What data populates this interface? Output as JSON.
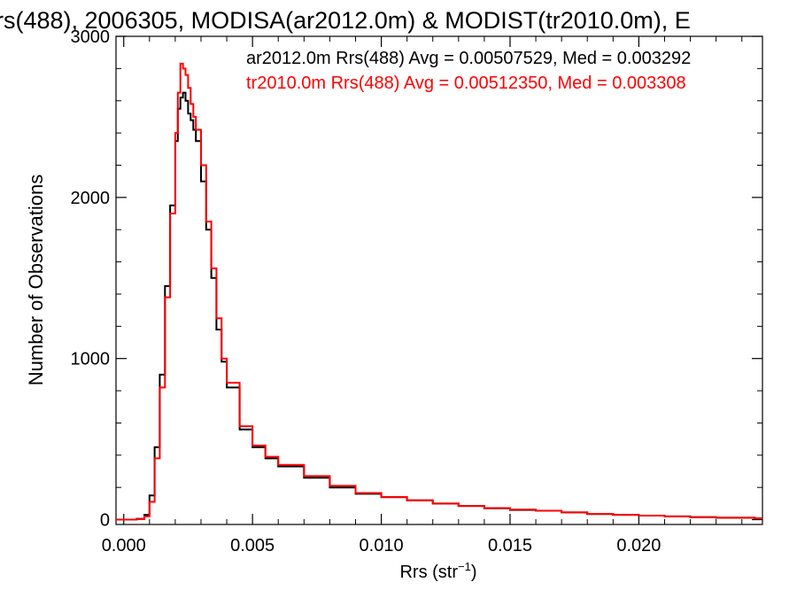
{
  "chart_data": {
    "type": "line",
    "title": "rs(488), 2006305, MODISA(ar2012.0m) & MODIST(tr2010.0m), E",
    "xlabel": "Rrs (str",
    "xlabel_sup": "−1",
    "xlabel_close": ")",
    "ylabel": "Number of Observations",
    "xlim": [
      -0.0003,
      0.0248
    ],
    "ylim": [
      -30,
      3000
    ],
    "x_ticks": [
      {
        "value": 0.0,
        "label": "0.000"
      },
      {
        "value": 0.005,
        "label": "0.005"
      },
      {
        "value": 0.01,
        "label": "0.010"
      },
      {
        "value": 0.015,
        "label": "0.015"
      },
      {
        "value": 0.02,
        "label": "0.020"
      }
    ],
    "y_ticks": [
      {
        "value": 0,
        "label": "0"
      },
      {
        "value": 1000,
        "label": "1000"
      },
      {
        "value": 2000,
        "label": "2000"
      },
      {
        "value": 3000,
        "label": "3000"
      }
    ],
    "grid": false,
    "legend_position": "top-right",
    "series": [
      {
        "name": "ar2012.0m",
        "color": "#000000",
        "stat_text": "ar2012.0m Rrs(488) Avg = 0.00507529, Med = 0.003292",
        "x": [
          -0.0003,
          0.0,
          0.0005,
          0.0008,
          0.001,
          0.0012,
          0.0014,
          0.0016,
          0.0018,
          0.002,
          0.0021,
          0.0022,
          0.0023,
          0.0024,
          0.0025,
          0.0026,
          0.0027,
          0.0028,
          0.003,
          0.0032,
          0.0034,
          0.0036,
          0.0038,
          0.004,
          0.0045,
          0.005,
          0.0055,
          0.006,
          0.007,
          0.008,
          0.009,
          0.01,
          0.011,
          0.012,
          0.013,
          0.014,
          0.015,
          0.016,
          0.017,
          0.018,
          0.019,
          0.02,
          0.021,
          0.022,
          0.023,
          0.0245
        ],
        "y": [
          0,
          0,
          5,
          30,
          150,
          450,
          900,
          1450,
          1950,
          2350,
          2550,
          2620,
          2650,
          2600,
          2520,
          2480,
          2420,
          2350,
          2100,
          1800,
          1500,
          1180,
          980,
          820,
          560,
          450,
          380,
          330,
          260,
          200,
          160,
          140,
          120,
          100,
          85,
          70,
          60,
          55,
          45,
          35,
          30,
          25,
          20,
          15,
          12,
          8
        ]
      },
      {
        "name": "tr2010.0m",
        "color": "#ff0000",
        "stat_text": "tr2010.0m Rrs(488) Avg = 0.00512350, Med = 0.003308",
        "x": [
          -0.0003,
          0.0,
          0.0005,
          0.0008,
          0.001,
          0.0012,
          0.0014,
          0.0016,
          0.0018,
          0.002,
          0.0021,
          0.0022,
          0.0023,
          0.0024,
          0.0025,
          0.0026,
          0.0027,
          0.0028,
          0.003,
          0.0032,
          0.0034,
          0.0036,
          0.0038,
          0.004,
          0.0045,
          0.005,
          0.0055,
          0.006,
          0.007,
          0.008,
          0.009,
          0.01,
          0.011,
          0.012,
          0.013,
          0.014,
          0.015,
          0.016,
          0.017,
          0.018,
          0.019,
          0.02,
          0.021,
          0.022,
          0.023,
          0.0245
        ],
        "y": [
          0,
          0,
          3,
          20,
          110,
          380,
          820,
          1380,
          1900,
          2400,
          2650,
          2830,
          2800,
          2760,
          2680,
          2580,
          2500,
          2420,
          2200,
          1850,
          1560,
          1250,
          1000,
          850,
          580,
          460,
          390,
          340,
          270,
          210,
          165,
          140,
          120,
          100,
          85,
          72,
          62,
          55,
          45,
          36,
          30,
          25,
          20,
          15,
          12,
          8
        ]
      }
    ]
  }
}
